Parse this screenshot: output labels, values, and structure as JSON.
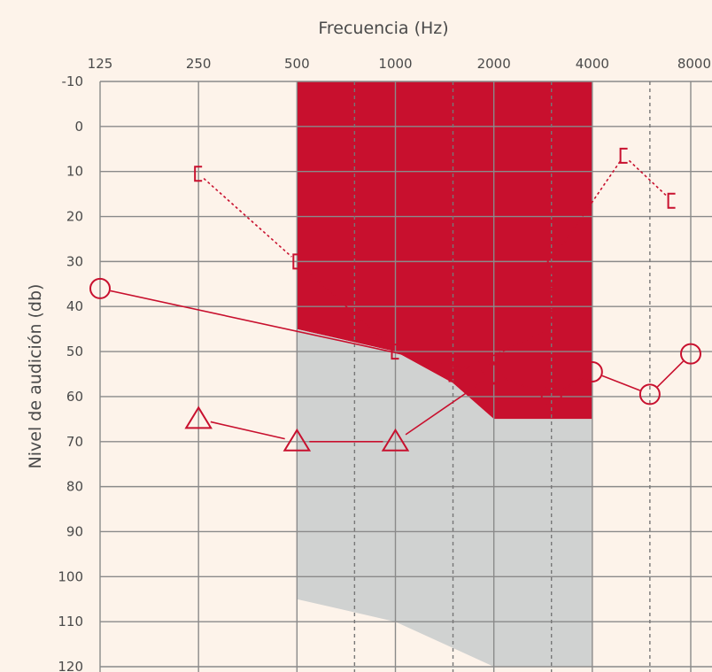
{
  "chart_data": {
    "type": "line",
    "title": "",
    "xlabel": "Frecuencia (Hz)",
    "ylabel": "Nivel de audición (db)",
    "x_scale": "log2",
    "x_ticks": [
      125,
      250,
      500,
      1000,
      2000,
      4000,
      8000
    ],
    "x_tick_labels": [
      "125",
      "250",
      "500",
      "1000",
      "2000",
      "4000",
      "8000"
    ],
    "ylim": [
      -10,
      120
    ],
    "y_inverted": true,
    "y_ticks": [
      -10,
      0,
      10,
      20,
      30,
      40,
      50,
      60,
      70,
      80,
      90,
      100,
      110,
      120
    ],
    "y_tick_labels": [
      "-10",
      "0",
      "10",
      "20",
      "30",
      "40",
      "50",
      "60",
      "70",
      "80",
      "90",
      "100",
      "110",
      "120"
    ],
    "grid": true,
    "colors": {
      "background": "#fdf3ea",
      "speech_zone_high": "#c8102e",
      "speech_zone_low": "#d0d2d1",
      "grid_major": "#8a8a8a",
      "grid_minor": "#777777",
      "markers": "#c8102e"
    },
    "regions": [
      {
        "color": "#c8102e",
        "points": [
          [
            500,
            -10
          ],
          [
            4000,
            -10
          ],
          [
            4000,
            65
          ],
          [
            2000,
            65
          ],
          [
            1500,
            57
          ],
          [
            1000,
            50
          ],
          [
            500,
            45
          ]
        ]
      },
      {
        "color": "#d0d2d1",
        "points": [
          [
            500,
            45
          ],
          [
            1000,
            50
          ],
          [
            1500,
            57
          ],
          [
            2000,
            65
          ],
          [
            4000,
            65
          ],
          [
            4000,
            120
          ],
          [
            2000,
            120
          ],
          [
            1000,
            110
          ],
          [
            500,
            105
          ]
        ]
      }
    ],
    "series": [
      {
        "marker": "circle",
        "line": "solid",
        "x": [
          125,
          2000,
          3000,
          4000,
          6000,
          8000
        ],
        "y": [
          36,
          55,
          60,
          54.5,
          59.5,
          50.5
        ]
      },
      {
        "marker": "triangle",
        "line": "solid",
        "x": [
          250,
          500,
          1000,
          2000
        ],
        "y": [
          65,
          70,
          70,
          55
        ]
      },
      {
        "marker": "bracket",
        "line": "dotted",
        "x": [
          250,
          500,
          1000,
          1500,
          3000,
          3000,
          5000,
          7000
        ],
        "y": [
          10.5,
          30,
          50,
          55,
          45,
          30,
          6.5,
          16.5
        ]
      }
    ]
  }
}
